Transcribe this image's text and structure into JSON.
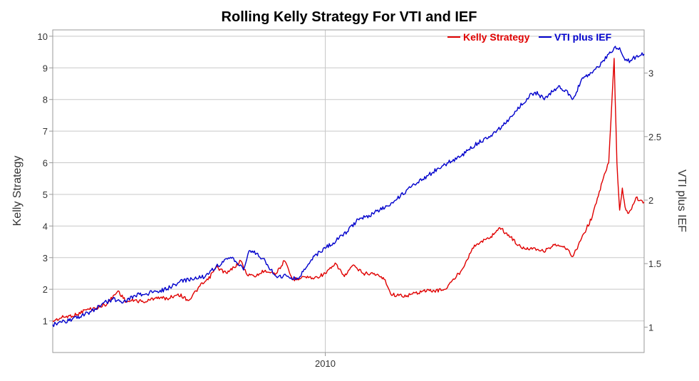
{
  "chart_data": {
    "type": "line",
    "title": "Rolling Kelly Strategy For VTI and IEF",
    "xlabel": "",
    "ylabel_left": "Kelly Strategy",
    "ylabel_right": "VTI plus IEF",
    "x_ticks": [
      "2010"
    ],
    "ylim_left": [
      0,
      10.2
    ],
    "yticks_left": [
      "1",
      "2",
      "3",
      "4",
      "5",
      "6",
      "7",
      "8",
      "9",
      "10"
    ],
    "ylim_right": [
      0.8,
      3.34
    ],
    "yticks_right": [
      "1",
      "1.5",
      "2",
      "2.5",
      "3"
    ],
    "grid": true,
    "legend_position": "top-right",
    "x_range_years": [
      2005.0,
      2015.85
    ],
    "series": [
      {
        "name": "Kelly Strategy",
        "axis": "left",
        "color": "#e00000",
        "x": [
          2005.0,
          2005.2,
          2005.45,
          2005.6,
          2005.8,
          2006.0,
          2006.2,
          2006.35,
          2006.5,
          2006.7,
          2006.9,
          2007.1,
          2007.3,
          2007.5,
          2007.7,
          2007.85,
          2008.0,
          2008.2,
          2008.45,
          2008.55,
          2008.7,
          2008.9,
          2009.1,
          2009.25,
          2009.4,
          2009.6,
          2009.8,
          2010.0,
          2010.2,
          2010.35,
          2010.5,
          2010.7,
          2010.9,
          2011.1,
          2011.2,
          2011.35,
          2011.5,
          2011.6,
          2011.8,
          2012.0,
          2012.2,
          2012.5,
          2012.7,
          2012.85,
          2013.0,
          2013.2,
          2013.4,
          2013.6,
          2013.85,
          2014.0,
          2014.2,
          2014.4,
          2014.55,
          2014.7,
          2014.9,
          2015.1,
          2015.2,
          2015.3,
          2015.35,
          2015.4,
          2015.45,
          2015.5,
          2015.55,
          2015.6,
          2015.7,
          2015.85
        ],
        "y": [
          1.0,
          1.12,
          1.2,
          1.35,
          1.4,
          1.55,
          1.95,
          1.6,
          1.65,
          1.6,
          1.75,
          1.7,
          1.85,
          1.65,
          2.1,
          2.3,
          2.7,
          2.5,
          2.9,
          2.5,
          2.4,
          2.6,
          2.5,
          2.9,
          2.3,
          2.4,
          2.35,
          2.5,
          2.8,
          2.4,
          2.75,
          2.5,
          2.5,
          2.3,
          1.85,
          1.8,
          1.8,
          1.85,
          1.95,
          1.95,
          2.0,
          2.6,
          3.3,
          3.5,
          3.6,
          3.95,
          3.65,
          3.3,
          3.3,
          3.2,
          3.4,
          3.3,
          3.05,
          3.6,
          4.3,
          5.5,
          6.0,
          9.3,
          6.0,
          4.5,
          5.2,
          4.6,
          4.4,
          4.5,
          4.9,
          4.75
        ]
      },
      {
        "name": "VTI plus IEF",
        "axis": "right",
        "color": "#0000cc",
        "x": [
          2005.0,
          2005.3,
          2005.5,
          2005.7,
          2005.9,
          2006.1,
          2006.3,
          2006.5,
          2006.7,
          2006.9,
          2007.1,
          2007.3,
          2007.55,
          2007.8,
          2008.0,
          2008.3,
          2008.5,
          2008.6,
          2008.7,
          2008.8,
          2008.9,
          2009.0,
          2009.1,
          2009.3,
          2009.5,
          2009.8,
          2010.0,
          2010.2,
          2010.4,
          2010.6,
          2010.8,
          2011.0,
          2011.3,
          2011.6,
          2011.9,
          2012.2,
          2012.5,
          2012.8,
          2013.0,
          2013.3,
          2013.5,
          2013.7,
          2013.85,
          2014.0,
          2014.3,
          2014.55,
          2014.7,
          2014.9,
          2015.0,
          2015.1,
          2015.2,
          2015.3,
          2015.4,
          2015.5,
          2015.6,
          2015.7,
          2015.85
        ],
        "y": [
          1.02,
          1.05,
          1.08,
          1.12,
          1.18,
          1.22,
          1.2,
          1.25,
          1.26,
          1.28,
          1.3,
          1.35,
          1.38,
          1.4,
          1.48,
          1.55,
          1.45,
          1.6,
          1.6,
          1.55,
          1.52,
          1.45,
          1.4,
          1.4,
          1.38,
          1.56,
          1.62,
          1.68,
          1.75,
          1.85,
          1.88,
          1.92,
          2.0,
          2.12,
          2.2,
          2.28,
          2.35,
          2.45,
          2.5,
          2.6,
          2.7,
          2.8,
          2.85,
          2.8,
          2.9,
          2.8,
          2.95,
          3.0,
          3.05,
          3.1,
          3.15,
          3.2,
          3.2,
          3.1,
          3.1,
          3.13,
          3.15
        ]
      }
    ]
  }
}
